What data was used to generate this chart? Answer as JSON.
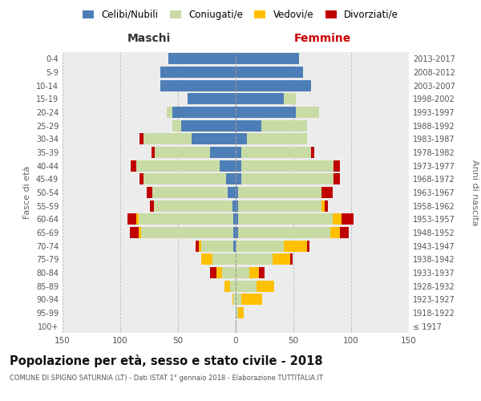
{
  "age_groups": [
    "100+",
    "95-99",
    "90-94",
    "85-89",
    "80-84",
    "75-79",
    "70-74",
    "65-69",
    "60-64",
    "55-59",
    "50-54",
    "45-49",
    "40-44",
    "35-39",
    "30-34",
    "25-29",
    "20-24",
    "15-19",
    "10-14",
    "5-9",
    "0-4"
  ],
  "birth_years": [
    "≤ 1917",
    "1918-1922",
    "1923-1927",
    "1928-1932",
    "1933-1937",
    "1938-1942",
    "1943-1947",
    "1948-1952",
    "1953-1957",
    "1958-1962",
    "1963-1967",
    "1968-1972",
    "1973-1977",
    "1978-1982",
    "1983-1987",
    "1988-1992",
    "1993-1997",
    "1998-2002",
    "2003-2007",
    "2008-2012",
    "2013-2017"
  ],
  "males": {
    "celibe": [
      0,
      0,
      0,
      0,
      0,
      0,
      2,
      2,
      2,
      3,
      7,
      8,
      14,
      22,
      38,
      47,
      55,
      42,
      65,
      65,
      58
    ],
    "coniugato": [
      0,
      0,
      2,
      5,
      12,
      20,
      28,
      80,
      82,
      68,
      65,
      72,
      72,
      48,
      42,
      8,
      5,
      0,
      0,
      0,
      0
    ],
    "vedovo": [
      0,
      0,
      1,
      5,
      5,
      10,
      2,
      2,
      2,
      0,
      0,
      0,
      0,
      0,
      0,
      0,
      0,
      0,
      0,
      0,
      0
    ],
    "divorziato": [
      0,
      0,
      0,
      0,
      5,
      0,
      3,
      8,
      8,
      3,
      5,
      3,
      5,
      3,
      3,
      0,
      0,
      0,
      0,
      0,
      0
    ]
  },
  "females": {
    "nubile": [
      0,
      0,
      0,
      0,
      0,
      0,
      0,
      2,
      2,
      2,
      2,
      5,
      5,
      5,
      10,
      22,
      52,
      42,
      65,
      58,
      55
    ],
    "coniugata": [
      0,
      2,
      5,
      18,
      12,
      32,
      42,
      80,
      82,
      72,
      72,
      80,
      80,
      60,
      52,
      40,
      20,
      10,
      0,
      0,
      0
    ],
    "vedova": [
      0,
      5,
      18,
      15,
      8,
      15,
      20,
      8,
      8,
      3,
      0,
      0,
      0,
      0,
      0,
      0,
      0,
      0,
      0,
      0,
      0
    ],
    "divorziata": [
      0,
      0,
      0,
      0,
      5,
      2,
      2,
      8,
      10,
      3,
      10,
      5,
      5,
      3,
      0,
      0,
      0,
      0,
      0,
      0,
      0
    ]
  },
  "colors": {
    "celibe_nubile": "#4d7eb8",
    "coniugato_a": "#c8dba4",
    "vedovo_a": "#ffc000",
    "divorziato_a": "#c00000"
  },
  "title": "Popolazione per età, sesso e stato civile - 2018",
  "subtitle": "COMUNE DI SPIGNO SATURNIA (LT) - Dati ISTAT 1° gennaio 2018 - Elaborazione TUTTITALIA.IT",
  "xlabel_left": "Maschi",
  "xlabel_right": "Femmine",
  "ylabel_left": "Fasce di età",
  "ylabel_right": "Anni di nascita",
  "xlim": 150,
  "background_color": "#ffffff",
  "grid_color": "#cccccc",
  "legend_labels": [
    "Celibi/Nubili",
    "Coniugati/e",
    "Vedovi/e",
    "Divorziati/e"
  ]
}
